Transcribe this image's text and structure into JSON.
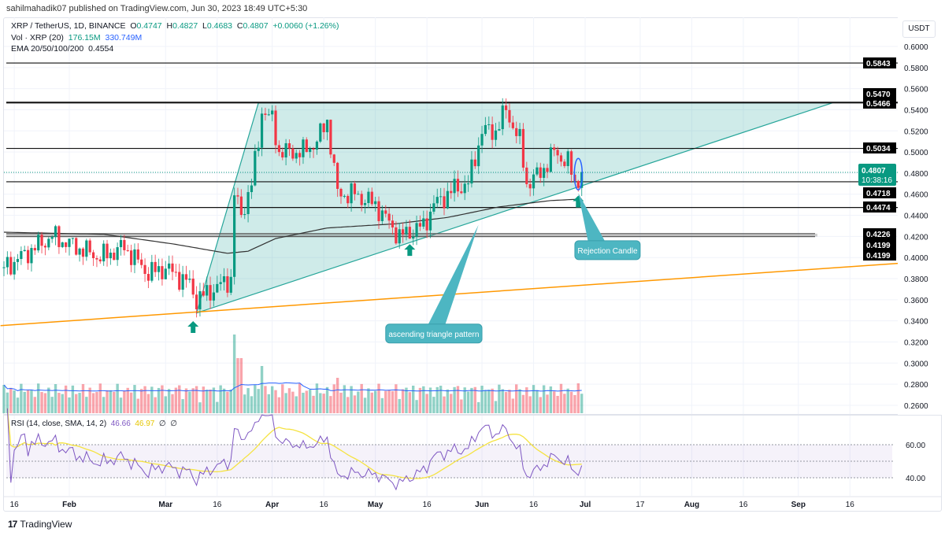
{
  "header": {
    "publisher_line": "sahilmahadik07 published on TradingView.com, Jun 30, 2023 18:49 UTC+5:30"
  },
  "legend": {
    "symbol": "XRP / TetherUS, 1D, BINANCE",
    "open_label": "O",
    "open": "0.4747",
    "high_label": "H",
    "high": "0.4827",
    "low_label": "L",
    "low": "0.4683",
    "close_label": "C",
    "close": "0.4807",
    "change": "+0.0060 (+1.26%)",
    "volume_label": "Vol · XRP (20)",
    "volume": "176.15M",
    "volume_ma": "330.749M",
    "ema_label": "EMA 20/50/100/200",
    "ema_value": "0.4554"
  },
  "currency": "USDT",
  "rsi_legend": {
    "label": "RSI (14, close, SMA, 14, 2)",
    "rsi": "46.66",
    "sma": "46.97",
    "extra1": "∅",
    "extra2": "∅"
  },
  "footer": {
    "logo": "17",
    "brand": "TradingView"
  },
  "colors": {
    "up": "#089981",
    "down": "#f23645",
    "triangle": "#26a69a",
    "trendline": "#ff9800",
    "rsi": "#7e57c2",
    "rsi_sma": "#f5e342",
    "callout": "#4db6c2",
    "ema": "#333333",
    "volume_ma": "#2962ff"
  },
  "chart_data": {
    "type": "candlestick",
    "title": "XRP / TetherUS, 1D, BINANCE",
    "ylim": [
      0.25,
      0.61
    ],
    "y_ticks": [
      "0.6000",
      "0.5800",
      "0.5600",
      "0.5400",
      "0.5200",
      "0.5000",
      "0.4800",
      "0.4600",
      "0.4400",
      "0.4200",
      "0.4000",
      "0.3800",
      "0.3600",
      "0.3400",
      "0.3200",
      "0.3000",
      "0.2800",
      "0.2600"
    ],
    "y_tick_values": [
      0.6,
      0.58,
      0.56,
      0.54,
      0.52,
      0.5,
      0.48,
      0.46,
      0.44,
      0.42,
      0.4,
      0.38,
      0.36,
      0.34,
      0.32,
      0.3,
      0.28,
      0.26
    ],
    "x_ticks": [
      {
        "label": "16",
        "day": -16
      },
      {
        "label": "Feb",
        "day": 0
      },
      {
        "label": "Mar",
        "day": 28
      },
      {
        "label": "16",
        "day": 43
      },
      {
        "label": "Apr",
        "day": 59
      },
      {
        "label": "16",
        "day": 74
      },
      {
        "label": "May",
        "day": 89
      },
      {
        "label": "16",
        "day": 104
      },
      {
        "label": "Jun",
        "day": 120
      },
      {
        "label": "16",
        "day": 135
      },
      {
        "label": "Jul",
        "day": 150
      },
      {
        "label": "17",
        "day": 166
      },
      {
        "label": "Aug",
        "day": 181
      },
      {
        "label": "16",
        "day": 196
      },
      {
        "label": "Sep",
        "day": 212
      },
      {
        "label": "16",
        "day": 227
      }
    ],
    "close_keypoints_day_price": [
      [
        -19,
        0.39
      ],
      [
        -12,
        0.405
      ],
      [
        -5,
        0.42
      ],
      [
        2,
        0.41
      ],
      [
        9,
        0.4
      ],
      [
        16,
        0.41
      ],
      [
        23,
        0.385
      ],
      [
        28,
        0.39
      ],
      [
        35,
        0.375
      ],
      [
        37,
        0.36
      ],
      [
        42,
        0.37
      ],
      [
        47,
        0.38
      ],
      [
        48,
        0.46
      ],
      [
        50,
        0.44
      ],
      [
        53,
        0.47
      ],
      [
        55,
        0.51
      ],
      [
        56,
        0.54
      ],
      [
        59,
        0.53
      ],
      [
        61,
        0.5
      ],
      [
        68,
        0.5
      ],
      [
        72,
        0.51
      ],
      [
        75,
        0.53
      ],
      [
        78,
        0.46
      ],
      [
        83,
        0.46
      ],
      [
        89,
        0.45
      ],
      [
        96,
        0.42
      ],
      [
        103,
        0.43
      ],
      [
        106,
        0.45
      ],
      [
        112,
        0.465
      ],
      [
        116,
        0.47
      ],
      [
        120,
        0.52
      ],
      [
        124,
        0.52
      ],
      [
        127,
        0.54
      ],
      [
        131,
        0.51
      ],
      [
        133,
        0.47
      ],
      [
        137,
        0.48
      ],
      [
        141,
        0.5
      ],
      [
        145,
        0.49
      ],
      [
        147,
        0.47
      ],
      [
        149,
        0.4807
      ]
    ],
    "ema200_keypoints_day_price": [
      [
        -19,
        0.424
      ],
      [
        10,
        0.422
      ],
      [
        30,
        0.413
      ],
      [
        46,
        0.404
      ],
      [
        52,
        0.406
      ],
      [
        60,
        0.418
      ],
      [
        75,
        0.428
      ],
      [
        95,
        0.432
      ],
      [
        110,
        0.438
      ],
      [
        125,
        0.448
      ],
      [
        140,
        0.454
      ],
      [
        149,
        0.4554
      ]
    ],
    "levels": [
      {
        "value": 0.5843,
        "label": "0.5843"
      },
      {
        "value": 0.547,
        "label": "0.5470"
      },
      {
        "value": 0.5466,
        "label": "0.5466"
      },
      {
        "value": 0.5034,
        "label": "0.5034"
      },
      {
        "value": 0.4718,
        "label": "0.4718"
      },
      {
        "value": 0.4474,
        "label": "0.4474"
      },
      {
        "value": 0.4226,
        "label": "0.4226"
      },
      {
        "value": 0.4199,
        "label": "0.4199"
      },
      {
        "value": 0.4199,
        "label": "0.4199"
      }
    ],
    "last_price": {
      "value": 0.4807,
      "label": "0.4807",
      "countdown": "10:38:16"
    },
    "triangle": {
      "start": [
        37,
        0.3474
      ],
      "top": [
        55,
        0.5466
      ],
      "apex": [
        222,
        0.5466
      ]
    },
    "trendline": {
      "from": [
        -20,
        0.3355
      ],
      "to": [
        241,
        0.3945
      ]
    },
    "support_arrows_day": [
      [
        36,
        0.333
      ],
      [
        99,
        0.406
      ],
      [
        148,
        0.452
      ]
    ],
    "annotations": [
      {
        "text": "ascending triangle pattern",
        "box_day": [
          92,
          120
        ],
        "box_price": 0.328,
        "target": [
          119,
          0.431
        ]
      },
      {
        "text": "Rejection Candle",
        "box_day": [
          147,
          166
        ],
        "box_price": 0.407,
        "target": [
          148,
          0.461
        ]
      }
    ],
    "rsi": {
      "ylim": [
        25,
        85
      ],
      "band": [
        40,
        60
      ],
      "mid": 50,
      "tick_labels": [
        "60.00",
        "40.00"
      ]
    }
  }
}
